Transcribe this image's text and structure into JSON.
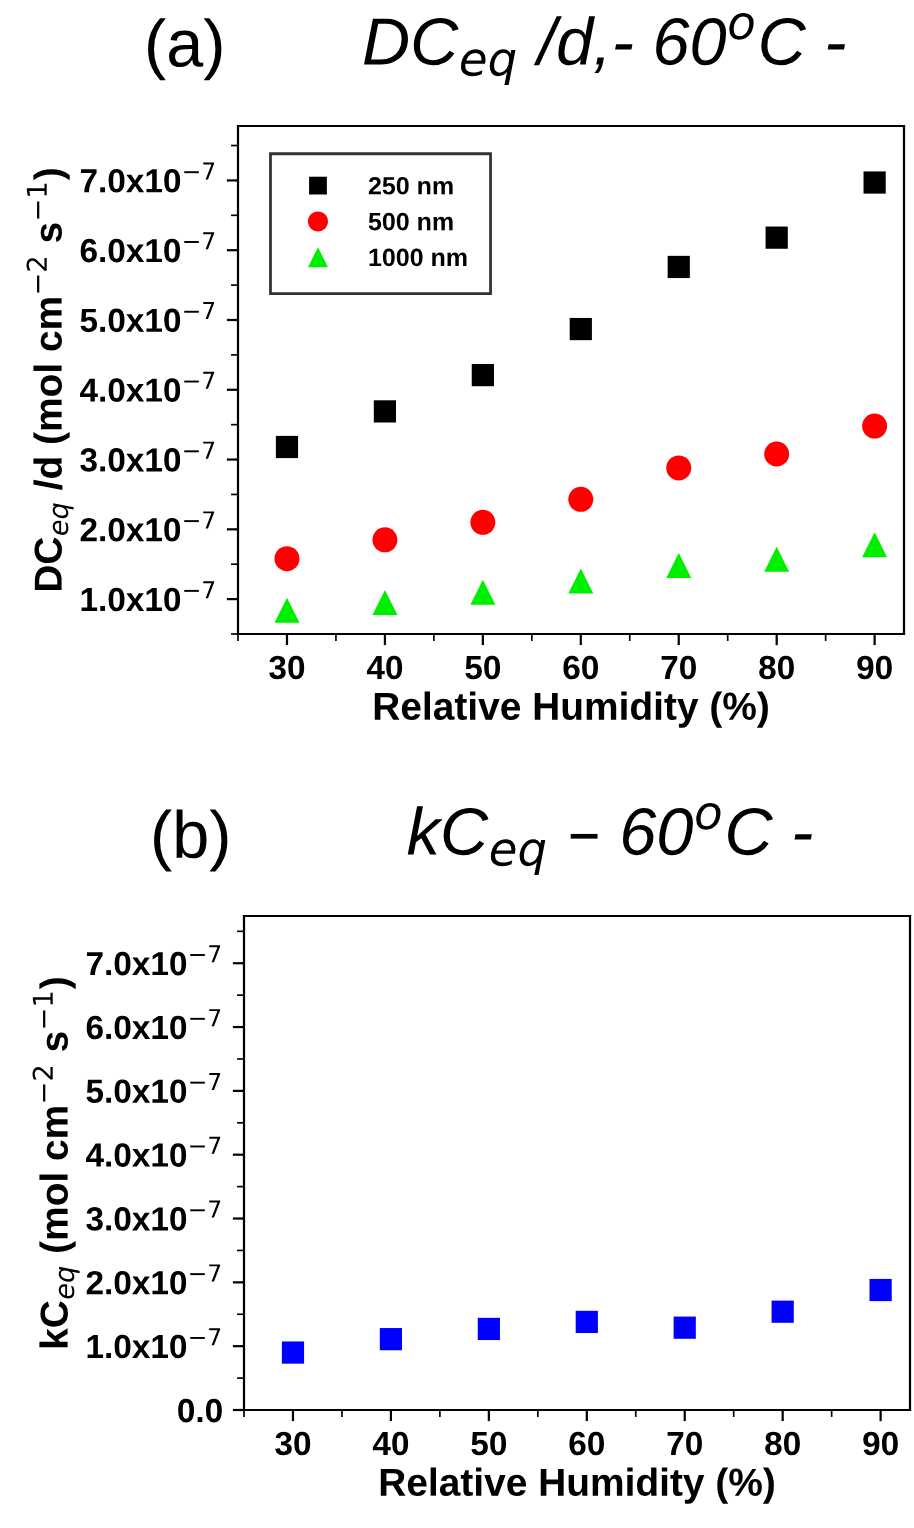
{
  "chart_data": [
    {
      "type": "scatter",
      "title": "DC$_{eq}$ /d,- 60$^{o}$C -",
      "annotations": [
        "(a)"
      ],
      "xlabel": "Relative Humidity (%)",
      "ylabel": "DC$_{eq}$ /d (mol cm$^{−2}$ s$^{−1}$)",
      "x": [
        30,
        40,
        50,
        60,
        70,
        80,
        90
      ],
      "series": [
        {
          "name": "250 nm",
          "color": "#000000",
          "marker": "square",
          "values": [
            3.18e-07,
            3.69e-07,
            4.21e-07,
            4.87e-07,
            5.76e-07,
            6.18e-07,
            6.97e-07
          ]
        },
        {
          "name": "500 nm",
          "color": "#ff0000",
          "marker": "circle",
          "values": [
            1.58e-07,
            1.85e-07,
            2.1e-07,
            2.43e-07,
            2.88e-07,
            3.08e-07,
            3.48e-07
          ]
        },
        {
          "name": "1000 nm",
          "color": "#00ee00",
          "marker": "triangle",
          "values": [
            8.4e-08,
            9.5e-08,
            1.1e-07,
            1.26e-07,
            1.48e-07,
            1.57e-07,
            1.78e-07
          ]
        }
      ],
      "xlim": [
        25,
        93
      ],
      "xticks": [
        30,
        40,
        50,
        60,
        70,
        80,
        90
      ],
      "ylim": [
        5e-08,
        7.78e-07
      ],
      "yticks": [
        {
          "value": 1e-07,
          "label": "1.0x10$^{−7}$"
        },
        {
          "value": 2e-07,
          "label": "2.0x10$^{−7}$"
        },
        {
          "value": 3e-07,
          "label": "3.0x10$^{−7}$"
        },
        {
          "value": 4e-07,
          "label": "4.0x10$^{−7}$"
        },
        {
          "value": 5e-07,
          "label": "5.0x10$^{−7}$"
        },
        {
          "value": 6e-07,
          "label": "6.0x10$^{−7}$"
        },
        {
          "value": 7e-07,
          "label": "7.0x10$^{−7}$"
        }
      ],
      "grid": false,
      "legend": "top left"
    },
    {
      "type": "scatter",
      "title": "kC$_{eq}$ – 60$^{o}$C -",
      "annotations": [
        "(b)"
      ],
      "xlabel": "Relative Humidity (%)",
      "ylabel": "kC$_{eq}$ (mol cm$^{−2}$ s$^{−1}$)",
      "x": [
        30,
        40,
        50,
        60,
        70,
        80,
        90
      ],
      "series": [
        {
          "color": "#0000ff",
          "marker": "square",
          "values": [
            9e-08,
            1.11e-07,
            1.27e-07,
            1.38e-07,
            1.29e-07,
            1.54e-07,
            1.88e-07
          ]
        }
      ],
      "xlim": [
        25,
        93
      ],
      "xticks": [
        30,
        40,
        50,
        60,
        70,
        80,
        90
      ],
      "ylim": [
        0,
        7.74e-07
      ],
      "yticks": [
        {
          "value": 0,
          "label": "0.0"
        },
        {
          "value": 1e-07,
          "label": "1.0x10$^{−7}$"
        },
        {
          "value": 2e-07,
          "label": "2.0x10$^{−7}$"
        },
        {
          "value": 3e-07,
          "label": "3.0x10$^{−7}$"
        },
        {
          "value": 4e-07,
          "label": "4.0x10$^{−7}$"
        },
        {
          "value": 5e-07,
          "label": "5.0x10$^{−7}$"
        },
        {
          "value": 6e-07,
          "label": "6.0x10$^{−7}$"
        },
        {
          "value": 7e-07,
          "label": "7.0x10$^{−7}$"
        }
      ],
      "grid": false,
      "legend": false
    }
  ]
}
